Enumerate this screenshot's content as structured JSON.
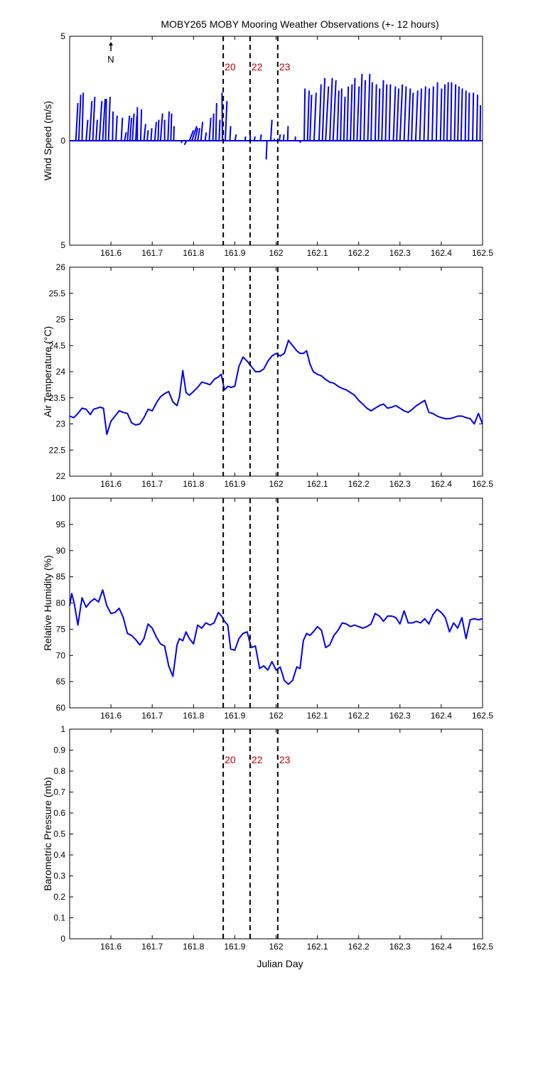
{
  "figure": {
    "title": "MOBY265 MOBY Mooring Weather Observations (+- 12 hours)",
    "xlabel": "Julian Day",
    "north_label": "N",
    "colors": {
      "data": "#0000ee",
      "marker_label": "#c00000",
      "axes": "#000000"
    }
  },
  "chart_data": [
    {
      "type": "line",
      "variant": "wind-vector-stick",
      "ylabel": "Wind Speed (m/s)",
      "xlim": [
        161.5,
        162.5
      ],
      "ylim": [
        -5,
        5
      ],
      "ytick_labels": [
        "5",
        "0",
        "5"
      ],
      "yticks": [
        5,
        0,
        -5
      ],
      "xticks": [
        161.6,
        161.7,
        161.8,
        161.9,
        162.0,
        162.1,
        162.2,
        162.3,
        162.4,
        162.5
      ],
      "xtick_labels": [
        "161.6",
        "161.7",
        "161.8",
        "161.9",
        "162",
        "162.1",
        "162.2",
        "162.3",
        "162.4",
        "162.5"
      ],
      "markers": [
        {
          "x": 161.872,
          "label": "20"
        },
        {
          "x": 161.937,
          "label": "22"
        },
        {
          "x": 162.004,
          "label": "23"
        }
      ],
      "sticks": [
        [
          161.515,
          0.5,
          1.8
        ],
        [
          161.522,
          0.5,
          2.2
        ],
        [
          161.53,
          0.3,
          2.3
        ],
        [
          161.54,
          0.4,
          1.0
        ],
        [
          161.548,
          0.6,
          1.9
        ],
        [
          161.556,
          0.5,
          2.1
        ],
        [
          161.564,
          0.3,
          1.0
        ],
        [
          161.572,
          0.6,
          1.9
        ],
        [
          161.58,
          0.6,
          2.0
        ],
        [
          161.587,
          0.2,
          2.0
        ],
        [
          161.594,
          0.4,
          2.1
        ],
        [
          161.604,
          0.1,
          1.4
        ],
        [
          161.612,
          0.3,
          1.2
        ],
        [
          161.625,
          0.3,
          1.1
        ],
        [
          161.633,
          0.4,
          0.4
        ],
        [
          161.64,
          0.5,
          1.2
        ],
        [
          161.646,
          0.4,
          1.1
        ],
        [
          161.652,
          0.4,
          1.3
        ],
        [
          161.66,
          0.3,
          1.2
        ],
        [
          161.664,
          0.0,
          1.6
        ],
        [
          161.672,
          0.2,
          1.5
        ],
        [
          161.68,
          0.4,
          0.8
        ],
        [
          161.688,
          0.2,
          0.5
        ],
        [
          161.697,
          0.2,
          0.6
        ],
        [
          161.706,
          0.4,
          0.9
        ],
        [
          161.714,
          0.2,
          1.0
        ],
        [
          161.72,
          0.5,
          1.3
        ],
        [
          161.73,
          0.0,
          1.0
        ],
        [
          161.738,
          0.3,
          1.4
        ],
        [
          161.745,
          0.2,
          1.3
        ],
        [
          161.752,
          0.1,
          0.7
        ],
        [
          161.773,
          -0.3,
          -0.1
        ],
        [
          161.783,
          -0.5,
          -0.2
        ],
        [
          161.79,
          1.0,
          0.5
        ],
        [
          161.796,
          1.2,
          0.7
        ],
        [
          161.803,
          0.7,
          0.6
        ],
        [
          161.81,
          0.5,
          0.6
        ],
        [
          161.818,
          0.4,
          0.9
        ],
        [
          161.828,
          0.3,
          0.4
        ],
        [
          161.838,
          0.4,
          1.1
        ],
        [
          161.847,
          0.2,
          1.3
        ],
        [
          161.854,
          0.2,
          1.8
        ],
        [
          161.862,
          0.2,
          1.0
        ],
        [
          161.87,
          -0.1,
          2.3
        ],
        [
          161.877,
          0.4,
          1.9
        ],
        [
          161.888,
          0.2,
          0.7
        ],
        [
          161.901,
          0.2,
          0.3
        ],
        [
          161.925,
          0.1,
          0.2
        ],
        [
          161.938,
          -0.2,
          0.5
        ],
        [
          161.947,
          0.2,
          0.2
        ],
        [
          161.962,
          0.2,
          0.3
        ],
        [
          161.978,
          -0.2,
          -0.9
        ],
        [
          161.987,
          0.3,
          1.0
        ],
        [
          161.996,
          -0.1,
          0.1
        ],
        [
          162.008,
          0.2,
          0.3
        ],
        [
          162.018,
          0.1,
          0.3
        ],
        [
          162.028,
          0.1,
          0.7
        ],
        [
          162.046,
          0.1,
          0.2
        ],
        [
          162.058,
          0.1,
          -0.1
        ],
        [
          162.068,
          0.2,
          2.5
        ],
        [
          162.076,
          0.4,
          2.4
        ],
        [
          162.082,
          0.4,
          2.2
        ],
        [
          162.092,
          0.5,
          2.3
        ],
        [
          162.104,
          0.5,
          2.7
        ],
        [
          162.112,
          0.6,
          3.0
        ],
        [
          162.12,
          0.7,
          2.6
        ],
        [
          162.13,
          0.6,
          3.0
        ],
        [
          162.138,
          0.7,
          2.9
        ],
        [
          162.148,
          0.4,
          2.4
        ],
        [
          162.156,
          0.3,
          2.5
        ],
        [
          162.164,
          0.3,
          2.1
        ],
        [
          162.172,
          0.3,
          2.6
        ],
        [
          162.18,
          0.4,
          2.7
        ],
        [
          162.188,
          0.3,
          3.0
        ],
        [
          162.196,
          0.5,
          2.6
        ],
        [
          162.204,
          0.4,
          3.2
        ],
        [
          162.213,
          0.3,
          2.9
        ],
        [
          162.222,
          0.5,
          3.2
        ],
        [
          162.23,
          0.3,
          2.8
        ],
        [
          162.24,
          0.3,
          2.7
        ],
        [
          162.248,
          0.3,
          2.5
        ],
        [
          162.256,
          0.4,
          2.9
        ],
        [
          162.265,
          0.3,
          2.7
        ],
        [
          162.274,
          0.3,
          2.7
        ],
        [
          162.284,
          0.5,
          2.6
        ],
        [
          162.292,
          0.5,
          2.5
        ],
        [
          162.3,
          0.6,
          2.7
        ],
        [
          162.31,
          0.5,
          2.6
        ],
        [
          162.32,
          0.5,
          2.5
        ],
        [
          162.328,
          0.4,
          2.3
        ],
        [
          162.338,
          0.5,
          2.4
        ],
        [
          162.348,
          0.4,
          2.5
        ],
        [
          162.358,
          0.4,
          2.6
        ],
        [
          162.368,
          0.3,
          2.5
        ],
        [
          162.378,
          0.3,
          2.6
        ],
        [
          162.388,
          0.3,
          2.8
        ],
        [
          162.398,
          0.3,
          2.5
        ],
        [
          162.406,
          0.3,
          2.7
        ],
        [
          162.414,
          0.3,
          2.8
        ],
        [
          162.423,
          0.2,
          2.8
        ],
        [
          162.432,
          0.3,
          2.7
        ],
        [
          162.44,
          0.3,
          2.6
        ],
        [
          162.448,
          0.3,
          2.5
        ],
        [
          162.458,
          0.2,
          2.4
        ],
        [
          162.466,
          0.2,
          2.3
        ],
        [
          162.476,
          0.2,
          2.3
        ],
        [
          162.486,
          0.2,
          2.2
        ],
        [
          162.494,
          0.1,
          1.7
        ]
      ],
      "grid": false,
      "legend": "none"
    },
    {
      "type": "line",
      "ylabel": "Air Temperature (°C)",
      "xlim": [
        161.5,
        162.5
      ],
      "ylim": [
        22,
        26
      ],
      "yticks": [
        22,
        22.5,
        23,
        23.5,
        24,
        24.5,
        25,
        25.5,
        26
      ],
      "ytick_labels": [
        "22",
        "22.5",
        "23",
        "23.5",
        "24",
        "24.5",
        "25",
        "25.5",
        "26"
      ],
      "xticks": [
        161.6,
        161.7,
        161.8,
        161.9,
        162.0,
        162.1,
        162.2,
        162.3,
        162.4,
        162.5
      ],
      "xtick_labels": [
        "161.6",
        "161.7",
        "161.8",
        "161.9",
        "162",
        "162.1",
        "162.2",
        "162.3",
        "162.4",
        "162.5"
      ],
      "markers": [
        {
          "x": 161.872
        },
        {
          "x": 161.937
        },
        {
          "x": 162.004
        }
      ],
      "x": [
        161.5,
        161.51,
        161.52,
        161.53,
        161.54,
        161.55,
        161.558,
        161.566,
        161.574,
        161.582,
        161.59,
        161.6,
        161.61,
        161.62,
        161.63,
        161.64,
        161.65,
        161.66,
        161.67,
        161.68,
        161.69,
        161.7,
        161.71,
        161.72,
        161.73,
        161.74,
        161.75,
        161.76,
        161.766,
        161.774,
        161.782,
        161.79,
        161.8,
        161.81,
        161.82,
        161.83,
        161.84,
        161.85,
        161.86,
        161.867,
        161.875,
        161.883,
        161.89,
        161.9,
        161.91,
        161.92,
        161.93,
        161.94,
        161.95,
        161.96,
        161.97,
        161.98,
        161.99,
        162.0,
        162.01,
        162.02,
        162.03,
        162.04,
        162.05,
        162.058,
        162.066,
        162.074,
        162.082,
        162.09,
        162.1,
        162.11,
        162.12,
        162.13,
        162.14,
        162.15,
        162.16,
        162.17,
        162.18,
        162.19,
        162.2,
        162.21,
        162.22,
        162.23,
        162.24,
        162.25,
        162.26,
        162.27,
        162.28,
        162.29,
        162.3,
        162.31,
        162.32,
        162.33,
        162.34,
        162.35,
        162.36,
        162.37,
        162.38,
        162.39,
        162.4,
        162.41,
        162.42,
        162.43,
        162.44,
        162.45,
        162.46,
        162.47,
        162.48,
        162.49,
        162.5
      ],
      "y": [
        23.15,
        23.12,
        23.2,
        23.3,
        23.28,
        23.18,
        23.28,
        23.3,
        23.32,
        23.3,
        22.8,
        23.05,
        23.15,
        23.25,
        23.22,
        23.2,
        23.02,
        22.98,
        23.0,
        23.12,
        23.28,
        23.25,
        23.4,
        23.52,
        23.58,
        23.62,
        23.42,
        23.35,
        23.52,
        24.02,
        23.6,
        23.55,
        23.62,
        23.7,
        23.8,
        23.78,
        23.75,
        23.85,
        23.9,
        23.95,
        23.65,
        23.72,
        23.7,
        23.72,
        24.1,
        24.28,
        24.2,
        24.1,
        24.0,
        24.0,
        24.05,
        24.2,
        24.3,
        24.35,
        24.3,
        24.35,
        24.6,
        24.5,
        24.4,
        24.35,
        24.35,
        24.4,
        24.15,
        24.0,
        23.95,
        23.92,
        23.85,
        23.8,
        23.78,
        23.72,
        23.68,
        23.65,
        23.6,
        23.55,
        23.45,
        23.38,
        23.3,
        23.25,
        23.3,
        23.35,
        23.38,
        23.3,
        23.32,
        23.35,
        23.3,
        23.25,
        23.22,
        23.28,
        23.35,
        23.4,
        23.45,
        23.22,
        23.2,
        23.15,
        23.12,
        23.1,
        23.1,
        23.12,
        23.15,
        23.15,
        23.12,
        23.1,
        23.0,
        23.2,
        23.0
      ],
      "grid": false,
      "legend": "none"
    },
    {
      "type": "line",
      "ylabel": "Relative Humidity (%)",
      "xlim": [
        161.5,
        162.5
      ],
      "ylim": [
        60,
        100
      ],
      "yticks": [
        60,
        65,
        70,
        75,
        80,
        85,
        90,
        95,
        100
      ],
      "ytick_labels": [
        "60",
        "65",
        "70",
        "75",
        "80",
        "85",
        "90",
        "95",
        "100"
      ],
      "xticks": [
        161.6,
        161.7,
        161.8,
        161.9,
        162.0,
        162.1,
        162.2,
        162.3,
        162.4,
        162.5
      ],
      "xtick_labels": [
        "161.6",
        "161.7",
        "161.8",
        "161.9",
        "162",
        "162.1",
        "162.2",
        "162.3",
        "162.4",
        "162.5"
      ],
      "markers": [
        {
          "x": 161.872
        },
        {
          "x": 161.937
        },
        {
          "x": 162.004
        }
      ],
      "x": [
        161.5,
        161.505,
        161.511,
        161.52,
        161.53,
        161.54,
        161.55,
        161.56,
        161.57,
        161.58,
        161.59,
        161.6,
        161.61,
        161.62,
        161.63,
        161.64,
        161.65,
        161.66,
        161.67,
        161.68,
        161.69,
        161.7,
        161.71,
        161.72,
        161.73,
        161.74,
        161.75,
        161.76,
        161.766,
        161.774,
        161.782,
        161.79,
        161.8,
        161.81,
        161.82,
        161.83,
        161.84,
        161.85,
        161.86,
        161.868,
        161.875,
        161.883,
        161.89,
        161.9,
        161.91,
        161.92,
        161.93,
        161.94,
        161.95,
        161.96,
        161.97,
        161.98,
        161.99,
        162.0,
        162.01,
        162.02,
        162.03,
        162.04,
        162.05,
        162.058,
        162.066,
        162.074,
        162.082,
        162.09,
        162.1,
        162.11,
        162.12,
        162.13,
        162.14,
        162.15,
        162.16,
        162.17,
        162.18,
        162.19,
        162.2,
        162.21,
        162.22,
        162.23,
        162.24,
        162.25,
        162.26,
        162.27,
        162.28,
        162.29,
        162.3,
        162.31,
        162.32,
        162.33,
        162.34,
        162.35,
        162.36,
        162.37,
        162.38,
        162.39,
        162.4,
        162.41,
        162.42,
        162.43,
        162.44,
        162.45,
        162.46,
        162.47,
        162.48,
        162.49,
        162.5
      ],
      "y": [
        79.5,
        81.8,
        80.0,
        75.8,
        81.0,
        79.2,
        80.2,
        80.8,
        80.2,
        82.5,
        79.5,
        78.0,
        78.2,
        79.0,
        77.2,
        74.2,
        73.8,
        73.0,
        72.0,
        73.2,
        76.0,
        75.2,
        73.5,
        72.2,
        71.8,
        68.0,
        66.0,
        72.0,
        73.2,
        72.8,
        74.5,
        73.2,
        72.2,
        75.8,
        75.2,
        76.2,
        75.8,
        76.2,
        78.2,
        77.5,
        76.5,
        75.8,
        71.2,
        71.0,
        73.2,
        74.2,
        74.5,
        71.5,
        71.8,
        67.5,
        68.0,
        67.2,
        68.8,
        67.2,
        67.8,
        65.2,
        64.5,
        65.2,
        67.8,
        67.5,
        72.8,
        74.2,
        73.8,
        74.5,
        75.5,
        74.8,
        71.5,
        72.0,
        73.8,
        74.8,
        76.2,
        76.0,
        75.5,
        75.8,
        75.5,
        75.2,
        75.5,
        76.0,
        78.0,
        77.5,
        76.5,
        77.5,
        77.5,
        77.2,
        76.0,
        78.5,
        76.2,
        76.2,
        76.5,
        76.2,
        77.0,
        76.0,
        77.8,
        78.8,
        78.2,
        77.2,
        74.5,
        76.2,
        75.2,
        77.2,
        73.2,
        76.8,
        77.0,
        76.8,
        77.0
      ],
      "grid": false,
      "legend": "none"
    },
    {
      "type": "line",
      "ylabel": "Barometric Pressure (mb)",
      "xlabel": "Julian Day",
      "xlim": [
        161.5,
        162.5
      ],
      "ylim": [
        0,
        1
      ],
      "yticks": [
        0,
        0.1,
        0.2,
        0.3,
        0.4,
        0.5,
        0.6,
        0.7,
        0.8,
        0.9,
        1
      ],
      "ytick_labels": [
        "0",
        "0.1",
        "0.2",
        "0.3",
        "0.4",
        "0.5",
        "0.6",
        "0.7",
        "0.8",
        "0.9",
        "1"
      ],
      "xticks": [
        161.6,
        161.7,
        161.8,
        161.9,
        162.0,
        162.1,
        162.2,
        162.3,
        162.4,
        162.5
      ],
      "xtick_labels": [
        "161.6",
        "161.7",
        "161.8",
        "161.9",
        "162",
        "162.1",
        "162.2",
        "162.3",
        "162.4",
        "162.5"
      ],
      "markers": [
        {
          "x": 161.872,
          "label": "20"
        },
        {
          "x": 161.937,
          "label": "22"
        },
        {
          "x": 162.004,
          "label": "23"
        }
      ],
      "x": [],
      "y": [],
      "grid": false,
      "legend": "none"
    }
  ]
}
